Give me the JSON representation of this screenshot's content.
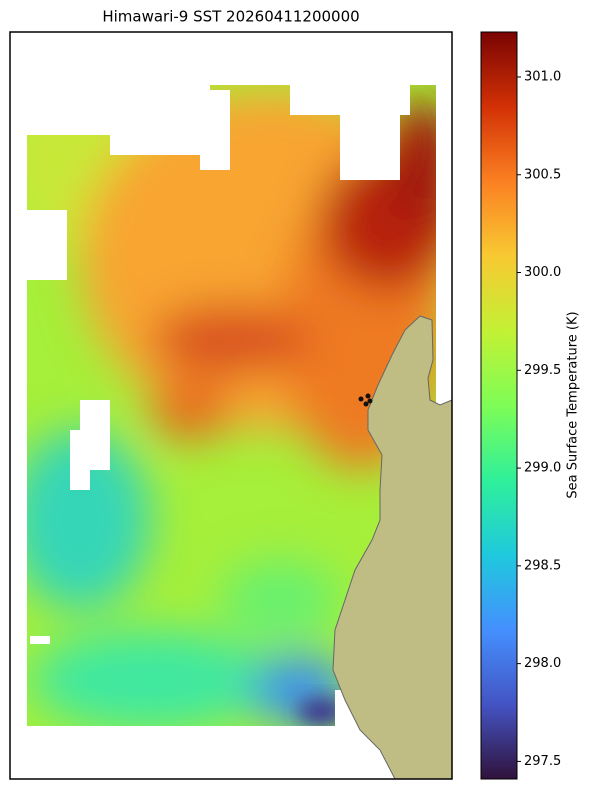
{
  "chart_data": {
    "type": "map",
    "title": "Himawari-9 SST 20260411200000",
    "colorbar_label": "Sea Surface Temperature (K)",
    "ylim": [
      297.41,
      301.23
    ],
    "yticks": [
      297.5,
      {
        "value": 298,
        "label": "298.0"
      },
      298.5,
      {
        "value": 299,
        "label": "299.0"
      },
      299.5,
      {
        "value": 300,
        "label": "300.0"
      },
      300.5,
      {
        "value": 301,
        "label": "301.0"
      }
    ]
  }
}
